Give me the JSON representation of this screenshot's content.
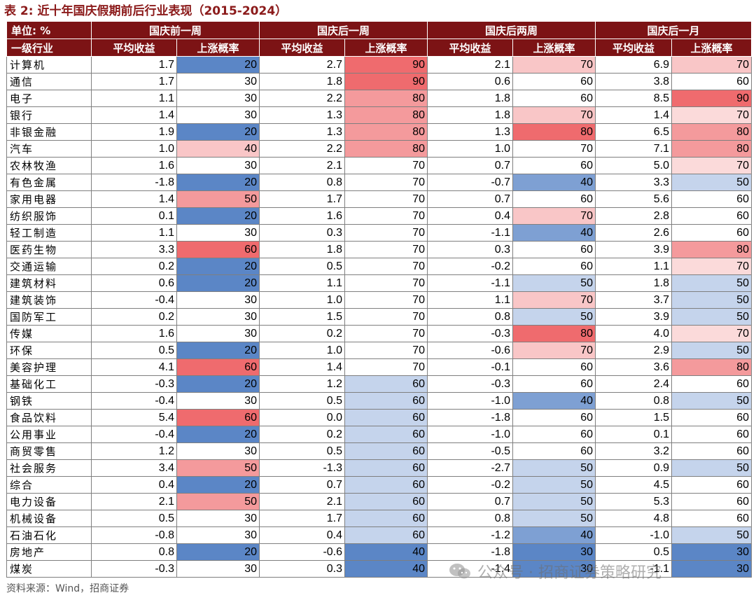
{
  "title": "表 2:  近十年国庆假期前后行业表现（2015-2024）",
  "header": {
    "unit_label": "单位: %",
    "industry_label": "一级行业",
    "periods": [
      "国庆前一周",
      "国庆后一周",
      "国庆后两周",
      "国庆后一月"
    ],
    "avg_return_label": "平均收益",
    "up_prob_label": "上涨概率"
  },
  "colors": {
    "header_bg": "#7c1315",
    "prob_20": "#5b86c6",
    "prob_30": "#ffffff",
    "prob_40_cold": "#7ea0d3",
    "prob_50_cold": "#c5d4ec",
    "prob_60_cold": "#c5d4ec",
    "prob_warm_light": "#f9c6c7",
    "prob_warm_mid": "#f49a9c",
    "prob_warm_strong": "#ef6b6e"
  },
  "rows": [
    {
      "name": "计算机",
      "v": [
        "1.7",
        "20",
        "2.7",
        "90",
        "2.1",
        "70",
        "6.9",
        "70"
      ]
    },
    {
      "name": "通信",
      "v": [
        "1.7",
        "30",
        "1.8",
        "90",
        "0.6",
        "60",
        "3.8",
        "60"
      ]
    },
    {
      "name": "电子",
      "v": [
        "1.1",
        "30",
        "2.2",
        "80",
        "1.8",
        "60",
        "8.5",
        "90"
      ]
    },
    {
      "name": "银行",
      "v": [
        "1.4",
        "30",
        "1.3",
        "80",
        "1.8",
        "70",
        "1.4",
        "70"
      ]
    },
    {
      "name": "非银金融",
      "v": [
        "1.9",
        "20",
        "1.3",
        "80",
        "1.3",
        "80",
        "6.5",
        "80"
      ]
    },
    {
      "name": "汽车",
      "v": [
        "1.0",
        "40",
        "2.2",
        "80",
        "1.0",
        "70",
        "7.1",
        "80"
      ]
    },
    {
      "name": "农林牧渔",
      "v": [
        "1.6",
        "30",
        "2.1",
        "70",
        "0.7",
        "60",
        "5.0",
        "70"
      ]
    },
    {
      "name": "有色金属",
      "v": [
        "-1.8",
        "20",
        "0.8",
        "70",
        "-0.7",
        "40",
        "3.3",
        "50"
      ]
    },
    {
      "name": "家用电器",
      "v": [
        "1.4",
        "50",
        "1.7",
        "70",
        "0.7",
        "60",
        "5.6",
        "60"
      ]
    },
    {
      "name": "纺织服饰",
      "v": [
        "0.1",
        "20",
        "1.6",
        "70",
        "0.4",
        "70",
        "2.8",
        "60"
      ]
    },
    {
      "name": "轻工制造",
      "v": [
        "1.1",
        "30",
        "0.3",
        "70",
        "-1.1",
        "40",
        "2.6",
        "60"
      ]
    },
    {
      "name": "医药生物",
      "v": [
        "3.3",
        "60",
        "1.8",
        "70",
        "0.3",
        "60",
        "3.9",
        "80"
      ]
    },
    {
      "name": "交通运输",
      "v": [
        "0.2",
        "20",
        "0.5",
        "70",
        "-0.2",
        "60",
        "1.1",
        "70"
      ]
    },
    {
      "name": "建筑材料",
      "v": [
        "0.6",
        "20",
        "1.1",
        "70",
        "-1.1",
        "50",
        "1.8",
        "50"
      ]
    },
    {
      "name": "建筑装饰",
      "v": [
        "-0.4",
        "30",
        "1.0",
        "70",
        "1.1",
        "70",
        "3.7",
        "50"
      ]
    },
    {
      "name": "国防军工",
      "v": [
        "0.2",
        "30",
        "1.5",
        "70",
        "0.8",
        "50",
        "3.9",
        "50"
      ]
    },
    {
      "name": "传媒",
      "v": [
        "1.6",
        "30",
        "0.2",
        "70",
        "-0.3",
        "80",
        "4.0",
        "70"
      ]
    },
    {
      "name": "环保",
      "v": [
        "0.5",
        "20",
        "1.0",
        "70",
        "-0.6",
        "70",
        "2.9",
        "50"
      ]
    },
    {
      "name": "美容护理",
      "v": [
        "4.1",
        "60",
        "1.4",
        "70",
        "-0.1",
        "60",
        "3.6",
        "80"
      ]
    },
    {
      "name": "基础化工",
      "v": [
        "-0.3",
        "20",
        "1.2",
        "60",
        "-0.3",
        "60",
        "2.4",
        "60"
      ]
    },
    {
      "name": "钢铁",
      "v": [
        "-0.4",
        "30",
        "0.5",
        "60",
        "-1.0",
        "40",
        "0.8",
        "50"
      ]
    },
    {
      "name": "食品饮料",
      "v": [
        "5.4",
        "60",
        "0.0",
        "60",
        "-1.8",
        "60",
        "1.5",
        "60"
      ]
    },
    {
      "name": "公用事业",
      "v": [
        "-0.4",
        "20",
        "0.2",
        "60",
        "-1.0",
        "60",
        "0.1",
        "60"
      ]
    },
    {
      "name": "商贸零售",
      "v": [
        "1.2",
        "30",
        "0.5",
        "60",
        "-0.5",
        "60",
        "3.2",
        "60"
      ]
    },
    {
      "name": "社会服务",
      "v": [
        "3.4",
        "50",
        "-1.3",
        "60",
        "-2.7",
        "50",
        "0.9",
        "50"
      ]
    },
    {
      "name": "综合",
      "v": [
        "0.4",
        "20",
        "0.7",
        "60",
        "-0.2",
        "50",
        "4.5",
        "60"
      ]
    },
    {
      "name": "电力设备",
      "v": [
        "2.1",
        "50",
        "2.1",
        "60",
        "0.7",
        "50",
        "5.3",
        "60"
      ]
    },
    {
      "name": "机械设备",
      "v": [
        "0.5",
        "30",
        "1.7",
        "60",
        "0.8",
        "50",
        "4.8",
        "60"
      ]
    },
    {
      "name": "石油石化",
      "v": [
        "-0.8",
        "30",
        "0.4",
        "60",
        "-1.2",
        "40",
        "-1.0",
        "50"
      ]
    },
    {
      "name": "房地产",
      "v": [
        "0.8",
        "20",
        "-0.6",
        "40",
        "-1.8",
        "30",
        "0.5",
        "30"
      ]
    },
    {
      "name": "煤炭",
      "v": [
        "-0.3",
        "30",
        "0.3",
        "40",
        "-1.4",
        "30",
        "-1.1",
        "30"
      ]
    }
  ],
  "cell_colors": [
    [
      "#5b86c6",
      "#ef6b6e",
      "#f9c6c7",
      "#f9c6c7"
    ],
    [
      "#ffffff",
      "#ef6b6e",
      "#ffffff",
      "#ffffff"
    ],
    [
      "#ffffff",
      "#f49a9c",
      "#ffffff",
      "#ef6b6e"
    ],
    [
      "#ffffff",
      "#f49a9c",
      "#f9c6c7",
      "#fbdada"
    ],
    [
      "#5b86c6",
      "#f49a9c",
      "#ef6b6e",
      "#f49a9c"
    ],
    [
      "#f9c6c7",
      "#f49a9c",
      "#ffffff",
      "#f49a9c"
    ],
    [
      "#ffffff",
      "#ffffff",
      "#ffffff",
      "#fbdada"
    ],
    [
      "#5b86c6",
      "#ffffff",
      "#7ea0d3",
      "#c5d4ec"
    ],
    [
      "#f49a9c",
      "#ffffff",
      "#ffffff",
      "#ffffff"
    ],
    [
      "#5b86c6",
      "#ffffff",
      "#f9c6c7",
      "#ffffff"
    ],
    [
      "#ffffff",
      "#ffffff",
      "#7ea0d3",
      "#ffffff"
    ],
    [
      "#ef6b6e",
      "#ffffff",
      "#ffffff",
      "#f49a9c"
    ],
    [
      "#5b86c6",
      "#ffffff",
      "#ffffff",
      "#fbdada"
    ],
    [
      "#5b86c6",
      "#ffffff",
      "#c5d4ec",
      "#c5d4ec"
    ],
    [
      "#ffffff",
      "#ffffff",
      "#f9c6c7",
      "#c5d4ec"
    ],
    [
      "#ffffff",
      "#ffffff",
      "#c5d4ec",
      "#c5d4ec"
    ],
    [
      "#ffffff",
      "#ffffff",
      "#ef6b6e",
      "#fbdada"
    ],
    [
      "#5b86c6",
      "#ffffff",
      "#f9c6c7",
      "#c5d4ec"
    ],
    [
      "#ef6b6e",
      "#ffffff",
      "#ffffff",
      "#f49a9c"
    ],
    [
      "#5b86c6",
      "#c5d4ec",
      "#ffffff",
      "#ffffff"
    ],
    [
      "#ffffff",
      "#c5d4ec",
      "#7ea0d3",
      "#c5d4ec"
    ],
    [
      "#ef6b6e",
      "#c5d4ec",
      "#ffffff",
      "#ffffff"
    ],
    [
      "#5b86c6",
      "#c5d4ec",
      "#ffffff",
      "#ffffff"
    ],
    [
      "#ffffff",
      "#c5d4ec",
      "#ffffff",
      "#ffffff"
    ],
    [
      "#f49a9c",
      "#c5d4ec",
      "#c5d4ec",
      "#c5d4ec"
    ],
    [
      "#5b86c6",
      "#c5d4ec",
      "#c5d4ec",
      "#ffffff"
    ],
    [
      "#f49a9c",
      "#c5d4ec",
      "#c5d4ec",
      "#ffffff"
    ],
    [
      "#ffffff",
      "#c5d4ec",
      "#c5d4ec",
      "#ffffff"
    ],
    [
      "#ffffff",
      "#c5d4ec",
      "#7ea0d3",
      "#c5d4ec"
    ],
    [
      "#5b86c6",
      "#5b86c6",
      "#5b86c6",
      "#5b86c6"
    ],
    [
      "#ffffff",
      "#5b86c6",
      "#5b86c6",
      "#5b86c6"
    ]
  ],
  "source": "资料来源：Wind，招商证券",
  "watermark": "公众号 · 招商证券策略研究"
}
